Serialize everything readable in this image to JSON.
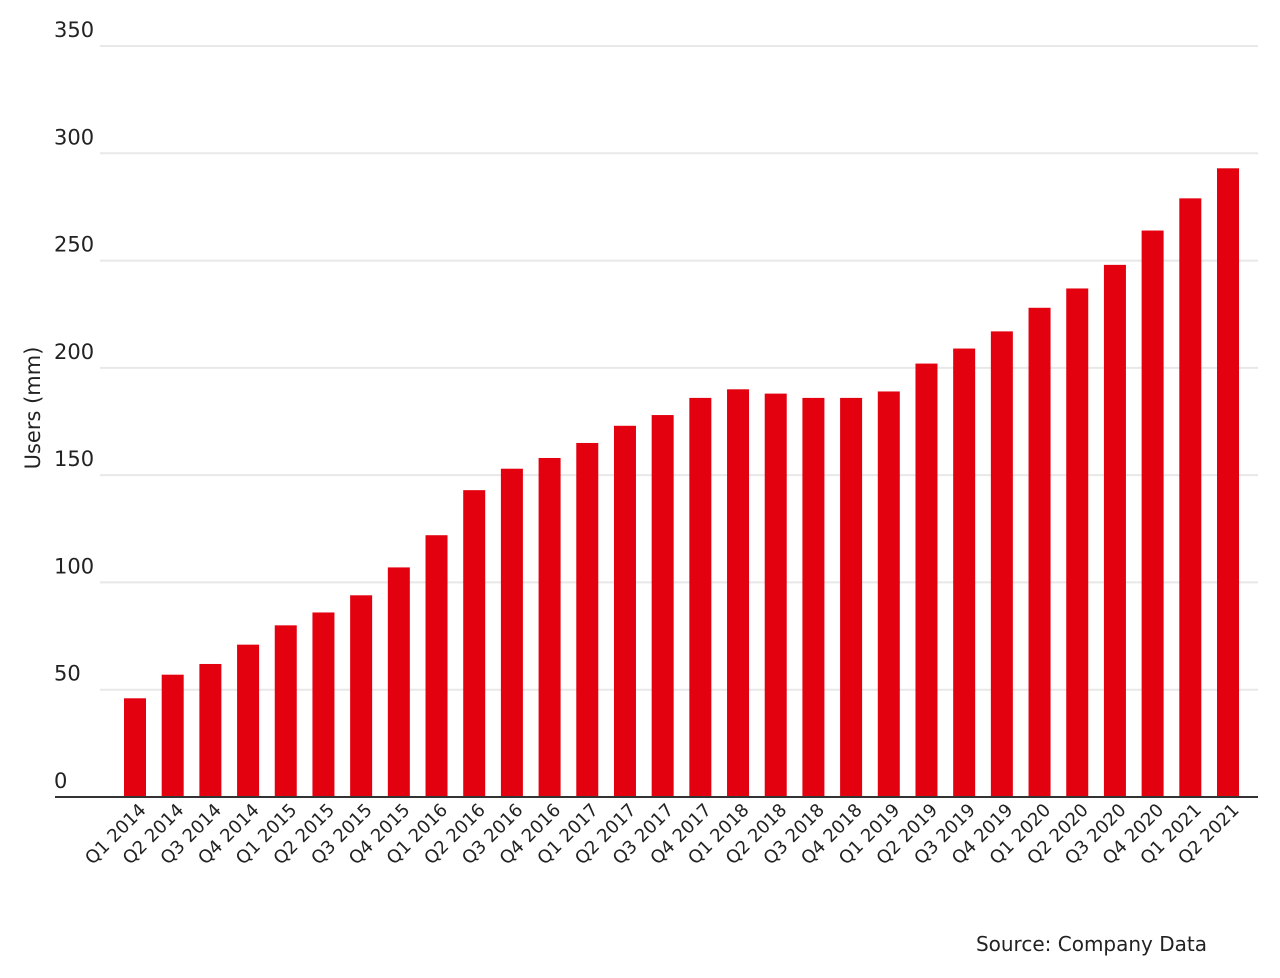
{
  "chart_data": {
    "type": "bar",
    "title": "",
    "xlabel": "",
    "ylabel": "Users (mm)",
    "ylim": [
      0,
      350
    ],
    "yticks": [
      0,
      50,
      100,
      150,
      200,
      250,
      300,
      350
    ],
    "grid": true,
    "legend": "none",
    "bar_color": "#e3000f",
    "grid_color": "#e8e8e8",
    "axis_color": "#333333",
    "categories": [
      "Q1 2014",
      "Q2 2014",
      "Q3 2014",
      "Q4 2014",
      "Q1 2015",
      "Q2 2015",
      "Q3 2015",
      "Q4 2015",
      "Q1 2016",
      "Q2 2016",
      "Q3 2016",
      "Q4 2016",
      "Q1 2017",
      "Q2 2017",
      "Q3 2017",
      "Q4 2017",
      "Q1 2018",
      "Q2 2018",
      "Q3 2018",
      "Q4 2018",
      "Q1 2019",
      "Q2 2019",
      "Q3 2019",
      "Q4 2019",
      "Q1 2020",
      "Q2 2020",
      "Q3 2020",
      "Q4 2020",
      "Q1 2021",
      "Q2 2021"
    ],
    "values": [
      46,
      57,
      62,
      71,
      80,
      86,
      94,
      107,
      122,
      143,
      153,
      158,
      165,
      173,
      178,
      186,
      190,
      188,
      186,
      186,
      189,
      202,
      209,
      217,
      228,
      237,
      248,
      264,
      279,
      293
    ],
    "source_note": "Source: Company Data"
  }
}
